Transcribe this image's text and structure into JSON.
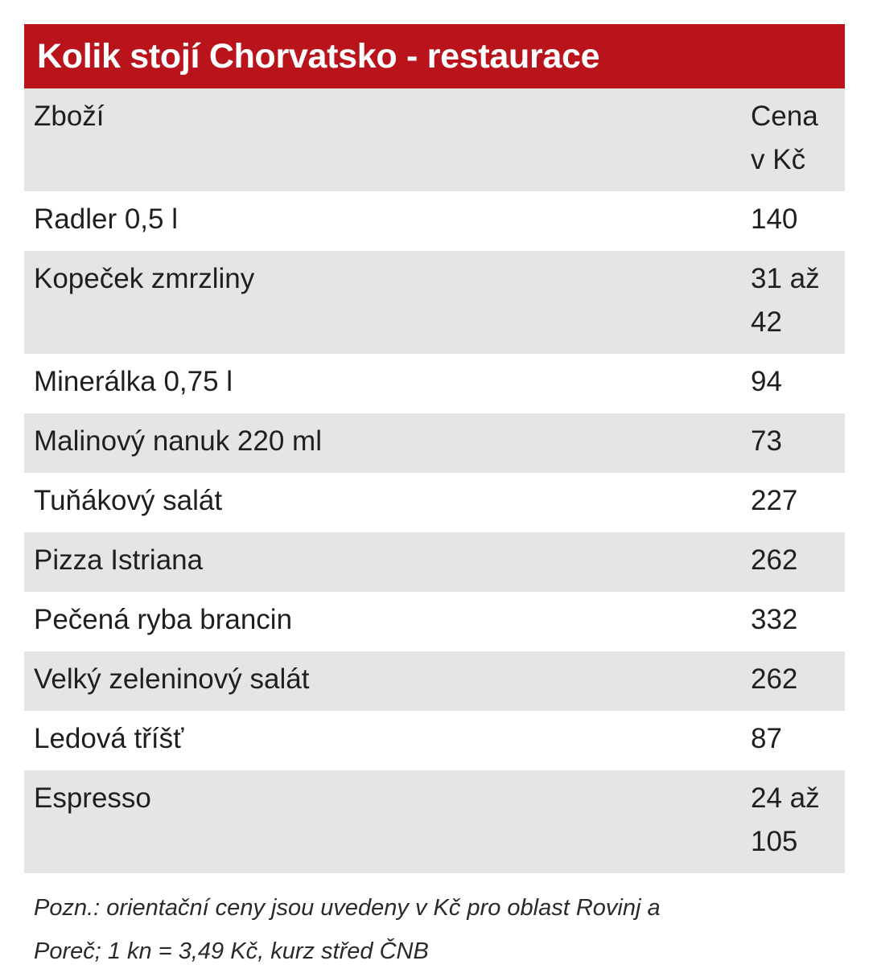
{
  "title": "Kolik stojí Chorvatsko - restaurace",
  "table": {
    "headers": {
      "item": "Zboží",
      "price_line1": "Cena",
      "price_line2": "v Kč"
    },
    "rows": [
      {
        "item": "Radler 0,5 l",
        "price_line1": "140",
        "price_line2": ""
      },
      {
        "item": "Kopeček zmrzliny",
        "price_line1": "31 až",
        "price_line2": "42"
      },
      {
        "item": "Minerálka 0,75 l",
        "price_line1": "94",
        "price_line2": ""
      },
      {
        "item": "Malinový nanuk 220 ml",
        "price_line1": "73",
        "price_line2": ""
      },
      {
        "item": "Tuňákový salát",
        "price_line1": "227",
        "price_line2": ""
      },
      {
        "item": "Pizza Istriana",
        "price_line1": "262",
        "price_line2": ""
      },
      {
        "item": "Pečená ryba brancin",
        "price_line1": "332",
        "price_line2": ""
      },
      {
        "item": "Velký zeleninový salát",
        "price_line1": "262",
        "price_line2": ""
      },
      {
        "item": "Ledová tříšť",
        "price_line1": "87",
        "price_line2": ""
      },
      {
        "item": "Espresso",
        "price_line1": "24 až",
        "price_line2": "105"
      }
    ]
  },
  "note": {
    "line1": "Pozn.: orientační ceny jsou uvedeny v Kč pro oblast Rovinj a",
    "line2": "Poreč; 1 kn = 3,49 Kč, kurz střed ČNB"
  },
  "colors": {
    "title_bar": "#b9141c",
    "row_shade": "#e5e5e5",
    "row_plain": "#ffffff"
  }
}
